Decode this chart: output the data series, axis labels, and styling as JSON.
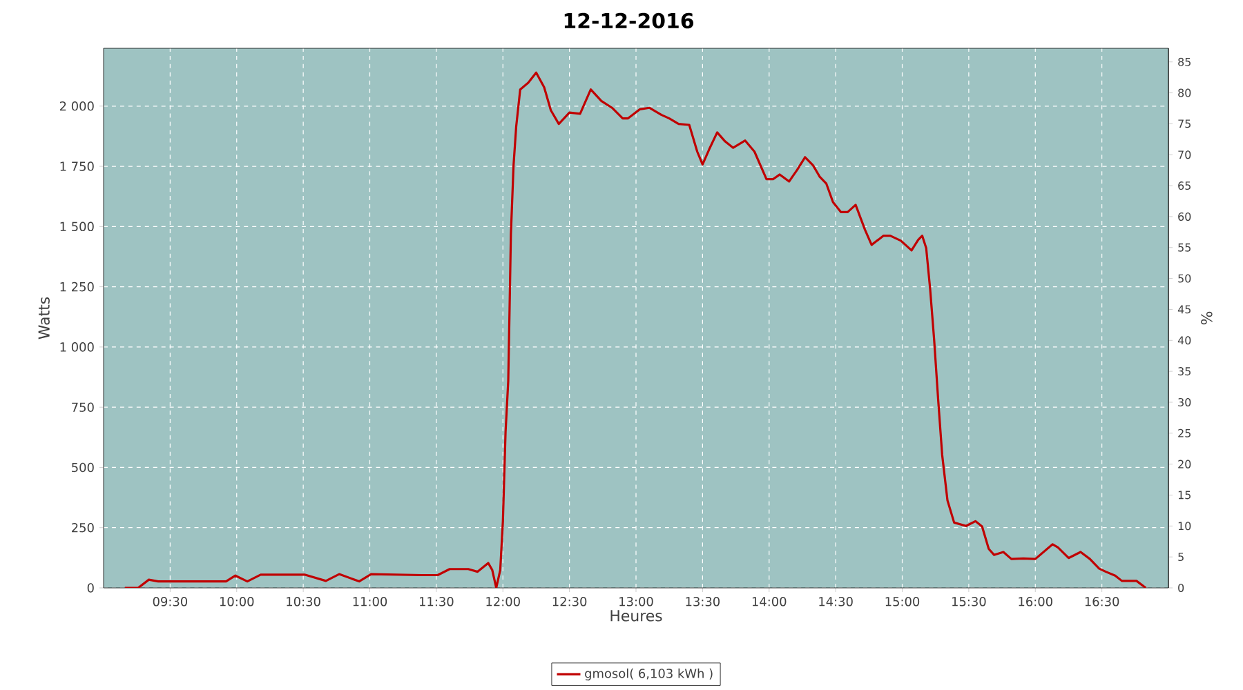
{
  "chart_data": {
    "type": "line",
    "title": "12-12-2016",
    "xlabel": "Heures",
    "ylabel": "Watts",
    "y2label": "%",
    "xlim": [
      9.0,
      17.0
    ],
    "xticks": [
      {
        "value": 9.5,
        "label": "09:30"
      },
      {
        "value": 10,
        "label": "10:00"
      },
      {
        "value": 10.5,
        "label": "10:30"
      },
      {
        "value": 11,
        "label": "11:00"
      },
      {
        "value": 11.5,
        "label": "11:30"
      },
      {
        "value": 12,
        "label": "12:00"
      },
      {
        "value": 12.5,
        "label": "12:30"
      },
      {
        "value": 13,
        "label": "13:00"
      },
      {
        "value": 13.5,
        "label": "13:30"
      },
      {
        "value": 14,
        "label": "14:00"
      },
      {
        "value": 14.5,
        "label": "14:30"
      },
      {
        "value": 15,
        "label": "15:00"
      },
      {
        "value": 15.5,
        "label": "15:30"
      },
      {
        "value": 16,
        "label": "16:00"
      },
      {
        "value": 16.5,
        "label": "16:30"
      }
    ],
    "ylim": [
      0,
      2240
    ],
    "yticks": [
      0,
      250,
      500,
      750,
      {
        "value": 1000,
        "label": "1 000"
      },
      {
        "value": 1250,
        "label": "1 250"
      },
      {
        "value": 1500,
        "label": "1 500"
      },
      {
        "value": 1750,
        "label": "1 750"
      },
      {
        "value": 2000,
        "label": "2 000"
      }
    ],
    "y2lim": [
      0,
      87.2
    ],
    "y2ticks": [
      0,
      5,
      10,
      15,
      20,
      25,
      30,
      35,
      40,
      45,
      50,
      55,
      60,
      65,
      70,
      75,
      80,
      85
    ],
    "grid": true,
    "legend": "bottom",
    "marker": "none",
    "line_style": "solid",
    "series": [
      {
        "name": "gmosol( 6,103 kWh )",
        "color": "#c00000",
        "x": [
          9.16,
          9.26,
          9.34,
          9.41,
          9.92,
          9.99,
          10.08,
          10.18,
          10.51,
          10.67,
          10.77,
          10.92,
          11.01,
          11.39,
          11.51,
          11.6,
          11.74,
          11.81,
          11.89,
          11.92,
          11.95,
          11.98,
          12.0,
          12.02,
          12.04,
          12.05,
          12.06,
          12.08,
          12.1,
          12.13,
          12.19,
          12.25,
          12.31,
          12.36,
          12.42,
          12.5,
          12.58,
          12.66,
          12.74,
          12.82,
          12.9,
          12.94,
          13.03,
          13.1,
          13.19,
          13.25,
          13.32,
          13.4,
          13.46,
          13.5,
          13.55,
          13.61,
          13.67,
          13.73,
          13.82,
          13.89,
          13.98,
          14.03,
          14.08,
          14.15,
          14.21,
          14.27,
          14.33,
          14.38,
          14.43,
          14.48,
          14.54,
          14.59,
          14.65,
          14.72,
          14.77,
          14.86,
          14.91,
          14.99,
          15.07,
          15.12,
          15.15,
          15.18,
          15.21,
          15.24,
          15.27,
          15.3,
          15.34,
          15.39,
          15.48,
          15.55,
          15.6,
          15.65,
          15.69,
          15.76,
          15.82,
          15.91,
          16.0,
          16.13,
          16.17,
          16.25,
          16.34,
          16.41,
          16.48,
          16.53,
          16.6,
          16.65,
          16.76,
          16.83
        ],
        "values": [
          0,
          0,
          34,
          27,
          27,
          51,
          27,
          55,
          55,
          29,
          57,
          27,
          57,
          53,
          53,
          78,
          78,
          67,
          103,
          74,
          0,
          74,
          277,
          648,
          858,
          1154,
          1468,
          1754,
          1916,
          2069,
          2097,
          2139,
          2078,
          1983,
          1926,
          1973,
          1968,
          2069,
          2021,
          1993,
          1949,
          1949,
          1987,
          1993,
          1964,
          1949,
          1926,
          1922,
          1811,
          1758,
          1821,
          1891,
          1853,
          1827,
          1857,
          1811,
          1697,
          1697,
          1716,
          1687,
          1735,
          1788,
          1754,
          1707,
          1678,
          1601,
          1560,
          1560,
          1590,
          1487,
          1424,
          1462,
          1462,
          1441,
          1401,
          1445,
          1462,
          1411,
          1239,
          1029,
          782,
          553,
          363,
          271,
          257,
          277,
          255,
          162,
          137,
          149,
          120,
          122,
          120,
          181,
          168,
          124,
          149,
          120,
          80,
          67,
          51,
          29,
          29,
          0
        ]
      }
    ]
  }
}
